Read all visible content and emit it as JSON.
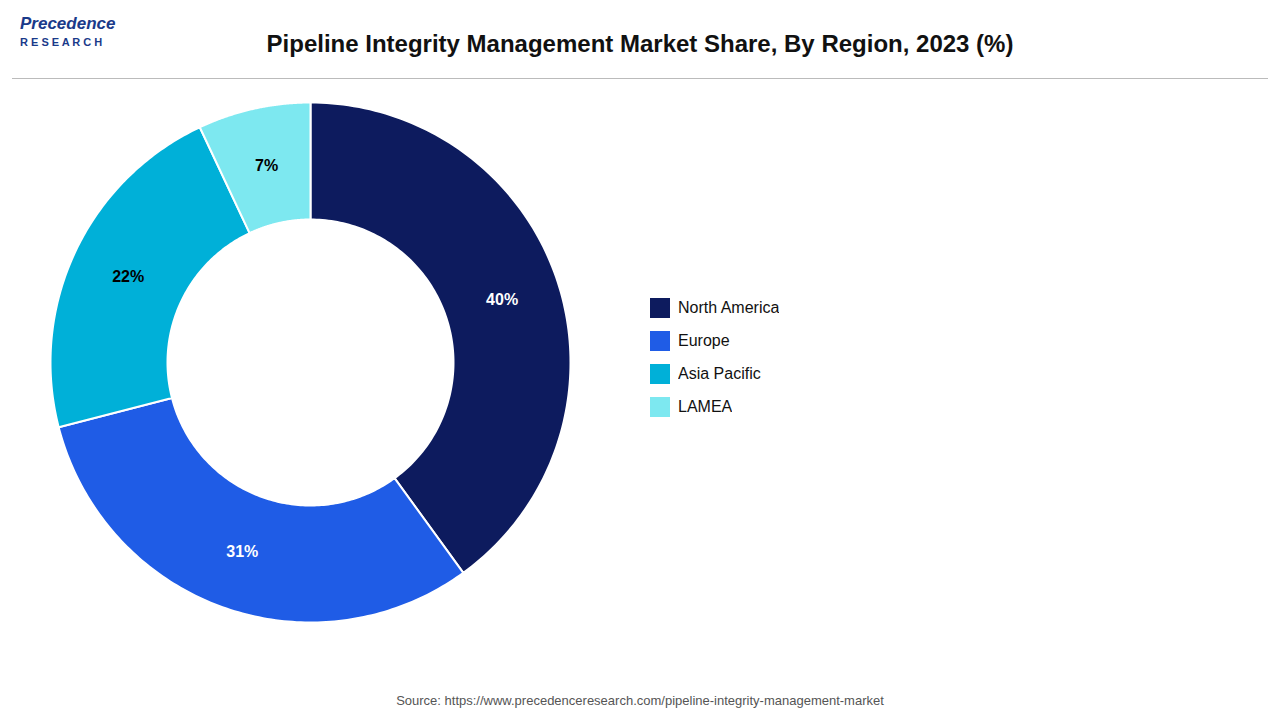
{
  "chart_data": {
    "type": "pie",
    "title": "Pipeline Integrity Management Market Share, By Region, 2023 (%)",
    "categories": [
      "North America",
      "Europe",
      "Asia Pacific",
      "LAMEA"
    ],
    "values": [
      40,
      31,
      22,
      7
    ],
    "value_labels": [
      "40%",
      "31%",
      "22%",
      "7%"
    ],
    "colors": [
      "#0d1b5e",
      "#1f5ce6",
      "#00b0d8",
      "#7de8f0"
    ],
    "data_labels": true,
    "legend": "right",
    "annotations": [
      "Precedence",
      "R E S E A R C H"
    ],
    "caption": "Source: https://www.precedenceresearch.com/pipeline-integrity-management-market"
  }
}
